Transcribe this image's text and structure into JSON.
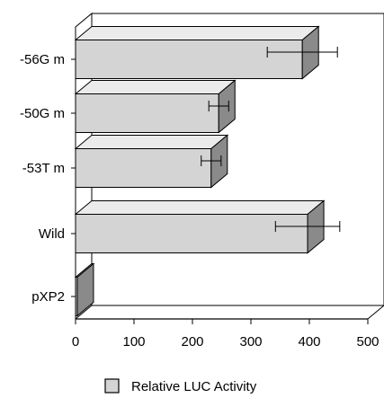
{
  "chart_data": {
    "type": "bar",
    "orientation": "horizontal",
    "style": "3d",
    "categories": [
      "-56G m",
      "-50G m",
      "-53T m",
      "Wild",
      "pXP2"
    ],
    "series": [
      {
        "name": "Relative LUC Activity",
        "values": [
          388,
          245,
          232,
          397,
          3
        ],
        "errors": [
          60,
          17,
          17,
          55,
          0
        ]
      }
    ],
    "xlim": [
      0,
      500
    ],
    "xticks": [
      0,
      100,
      200,
      300,
      400,
      500
    ],
    "tick_labels": [
      "0",
      "100",
      "200",
      "300",
      "400",
      "500"
    ],
    "legend_position": "bottom",
    "colors": {
      "bar_front": "#d4d4d4",
      "bar_top": "#ebebeb",
      "bar_side": "#8a8a8a",
      "axis": "#000000"
    }
  },
  "legend": {
    "label": "Relative LUC Activity"
  }
}
